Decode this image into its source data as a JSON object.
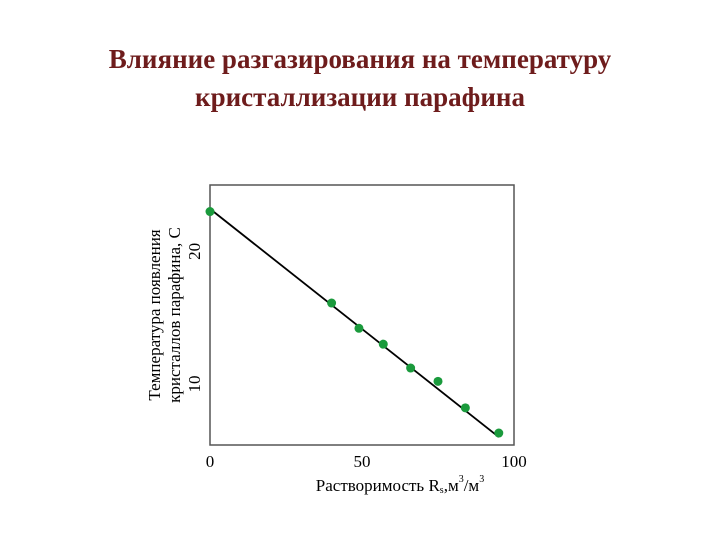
{
  "chart_data": {
    "type": "scatter",
    "title": [
      "Влияние разгазирования на температуру",
      "кристаллизации парафина"
    ],
    "x_label": [
      "Растворимость R",
      "s",
      ",м",
      "3",
      "/м",
      "3"
    ],
    "y_label": [
      "Температура появления",
      "кристаллов парафина, С"
    ],
    "xlim": [
      0,
      100
    ],
    "ylim": [
      5.4,
      25
    ],
    "xticks": [
      0,
      50,
      100
    ],
    "yticks": [
      10,
      20
    ],
    "color": "#1a9a3c",
    "points": {
      "x": [
        0,
        40,
        49,
        57,
        66,
        75,
        84,
        95
      ],
      "values": [
        23.0,
        16.1,
        14.2,
        13.0,
        11.2,
        10.2,
        8.2,
        6.3
      ]
    },
    "fit": {
      "x": [
        0,
        95
      ],
      "values": [
        23.2,
        6.0
      ]
    }
  }
}
